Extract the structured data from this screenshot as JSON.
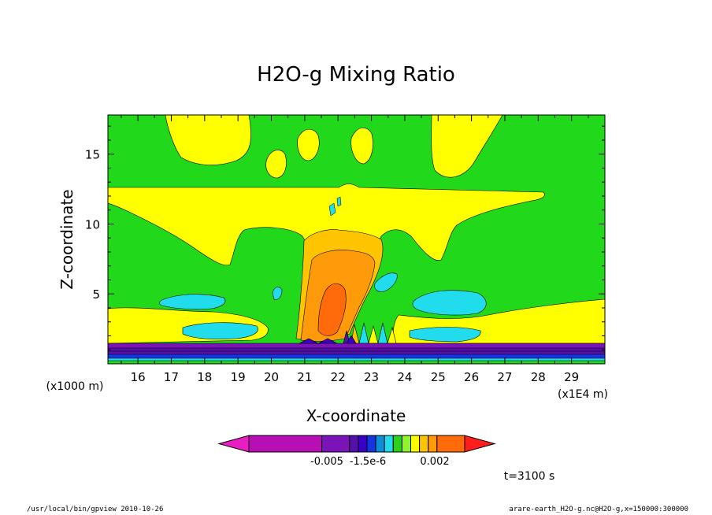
{
  "chart_data": {
    "type": "heatmap",
    "title": "H2O-g Mixing Ratio",
    "xlabel": "X-coordinate",
    "ylabel": "Z-coordinate",
    "x_unit": "(x1E4 m)",
    "y_unit": "(x1000 m)",
    "xlim": [
      15.1,
      30.0
    ],
    "ylim": [
      0.0,
      17.8
    ],
    "x_ticks": [
      16,
      17,
      18,
      19,
      20,
      21,
      22,
      23,
      24,
      25,
      26,
      27,
      28,
      29
    ],
    "y_ticks": [
      5,
      10,
      15
    ],
    "time_label": "t=3100 s",
    "colorbar": {
      "labels": [
        "-0.005",
        "-1.5e-6",
        "0.002"
      ],
      "colors": [
        "#e81ec2",
        "#b70fb3",
        "#7a14b8",
        "#5410a8",
        "#3a00c8",
        "#1535e0",
        "#0a8fd8",
        "#21dcec",
        "#2ed01e",
        "#8ef52a",
        "#ffff00",
        "#ffc400",
        "#ff9a0a",
        "#ff6b0a",
        "#ff1d1d"
      ]
    },
    "regions": [
      {
        "name": "surface-band",
        "value_class": "low",
        "color": "#5410a8",
        "z_range": [
          0.5,
          1.5
        ],
        "x_range": [
          15.1,
          30.0
        ]
      },
      {
        "name": "upper-yellow-band",
        "color": "#ffff00",
        "z_range": [
          10.0,
          12.5
        ],
        "x_range": [
          15.1,
          28.9
        ]
      },
      {
        "name": "central-plume-core",
        "color": "#ff9a0a",
        "z_range": [
          1.0,
          7.5
        ],
        "x_range": [
          20.9,
          22.8
        ]
      },
      {
        "name": "left-cyan-pocket",
        "color": "#21dcec",
        "z_range": [
          3.8,
          4.9
        ],
        "x_range": [
          16.9,
          18.8
        ]
      },
      {
        "name": "right-cyan-pocket",
        "color": "#21dcec",
        "z_range": [
          3.4,
          4.8
        ],
        "x_range": [
          24.3,
          26.4
        ]
      }
    ]
  },
  "footer": {
    "left": "/usr/local/bin/gpview  2010-10-26",
    "right": "arare-earth_H2O-g.nc@H2O-g,x=150000:300000"
  },
  "colors": {
    "background": "#21d81a",
    "axes": "#000000"
  }
}
